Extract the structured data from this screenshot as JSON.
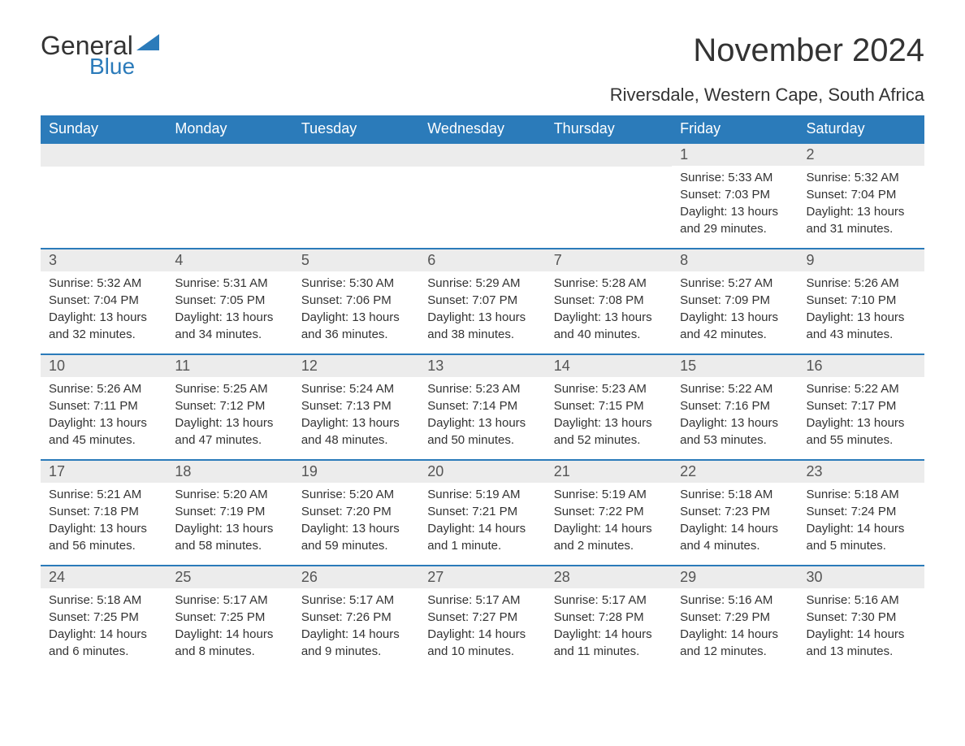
{
  "logo": {
    "text1": "General",
    "text2": "Blue"
  },
  "title": "November 2024",
  "subtitle": "Riversdale, Western Cape, South Africa",
  "colors": {
    "header_bg": "#2b7bba",
    "header_text": "#ffffff",
    "day_number_bg": "#ececec",
    "week_border": "#2b7bba",
    "body_text": "#333333",
    "logo_blue": "#2b7bba"
  },
  "day_headers": [
    "Sunday",
    "Monday",
    "Tuesday",
    "Wednesday",
    "Thursday",
    "Friday",
    "Saturday"
  ],
  "weeks": [
    [
      null,
      null,
      null,
      null,
      null,
      {
        "day": "1",
        "sunrise": "Sunrise: 5:33 AM",
        "sunset": "Sunset: 7:03 PM",
        "daylight": "Daylight: 13 hours and 29 minutes."
      },
      {
        "day": "2",
        "sunrise": "Sunrise: 5:32 AM",
        "sunset": "Sunset: 7:04 PM",
        "daylight": "Daylight: 13 hours and 31 minutes."
      }
    ],
    [
      {
        "day": "3",
        "sunrise": "Sunrise: 5:32 AM",
        "sunset": "Sunset: 7:04 PM",
        "daylight": "Daylight: 13 hours and 32 minutes."
      },
      {
        "day": "4",
        "sunrise": "Sunrise: 5:31 AM",
        "sunset": "Sunset: 7:05 PM",
        "daylight": "Daylight: 13 hours and 34 minutes."
      },
      {
        "day": "5",
        "sunrise": "Sunrise: 5:30 AM",
        "sunset": "Sunset: 7:06 PM",
        "daylight": "Daylight: 13 hours and 36 minutes."
      },
      {
        "day": "6",
        "sunrise": "Sunrise: 5:29 AM",
        "sunset": "Sunset: 7:07 PM",
        "daylight": "Daylight: 13 hours and 38 minutes."
      },
      {
        "day": "7",
        "sunrise": "Sunrise: 5:28 AM",
        "sunset": "Sunset: 7:08 PM",
        "daylight": "Daylight: 13 hours and 40 minutes."
      },
      {
        "day": "8",
        "sunrise": "Sunrise: 5:27 AM",
        "sunset": "Sunset: 7:09 PM",
        "daylight": "Daylight: 13 hours and 42 minutes."
      },
      {
        "day": "9",
        "sunrise": "Sunrise: 5:26 AM",
        "sunset": "Sunset: 7:10 PM",
        "daylight": "Daylight: 13 hours and 43 minutes."
      }
    ],
    [
      {
        "day": "10",
        "sunrise": "Sunrise: 5:26 AM",
        "sunset": "Sunset: 7:11 PM",
        "daylight": "Daylight: 13 hours and 45 minutes."
      },
      {
        "day": "11",
        "sunrise": "Sunrise: 5:25 AM",
        "sunset": "Sunset: 7:12 PM",
        "daylight": "Daylight: 13 hours and 47 minutes."
      },
      {
        "day": "12",
        "sunrise": "Sunrise: 5:24 AM",
        "sunset": "Sunset: 7:13 PM",
        "daylight": "Daylight: 13 hours and 48 minutes."
      },
      {
        "day": "13",
        "sunrise": "Sunrise: 5:23 AM",
        "sunset": "Sunset: 7:14 PM",
        "daylight": "Daylight: 13 hours and 50 minutes."
      },
      {
        "day": "14",
        "sunrise": "Sunrise: 5:23 AM",
        "sunset": "Sunset: 7:15 PM",
        "daylight": "Daylight: 13 hours and 52 minutes."
      },
      {
        "day": "15",
        "sunrise": "Sunrise: 5:22 AM",
        "sunset": "Sunset: 7:16 PM",
        "daylight": "Daylight: 13 hours and 53 minutes."
      },
      {
        "day": "16",
        "sunrise": "Sunrise: 5:22 AM",
        "sunset": "Sunset: 7:17 PM",
        "daylight": "Daylight: 13 hours and 55 minutes."
      }
    ],
    [
      {
        "day": "17",
        "sunrise": "Sunrise: 5:21 AM",
        "sunset": "Sunset: 7:18 PM",
        "daylight": "Daylight: 13 hours and 56 minutes."
      },
      {
        "day": "18",
        "sunrise": "Sunrise: 5:20 AM",
        "sunset": "Sunset: 7:19 PM",
        "daylight": "Daylight: 13 hours and 58 minutes."
      },
      {
        "day": "19",
        "sunrise": "Sunrise: 5:20 AM",
        "sunset": "Sunset: 7:20 PM",
        "daylight": "Daylight: 13 hours and 59 minutes."
      },
      {
        "day": "20",
        "sunrise": "Sunrise: 5:19 AM",
        "sunset": "Sunset: 7:21 PM",
        "daylight": "Daylight: 14 hours and 1 minute."
      },
      {
        "day": "21",
        "sunrise": "Sunrise: 5:19 AM",
        "sunset": "Sunset: 7:22 PM",
        "daylight": "Daylight: 14 hours and 2 minutes."
      },
      {
        "day": "22",
        "sunrise": "Sunrise: 5:18 AM",
        "sunset": "Sunset: 7:23 PM",
        "daylight": "Daylight: 14 hours and 4 minutes."
      },
      {
        "day": "23",
        "sunrise": "Sunrise: 5:18 AM",
        "sunset": "Sunset: 7:24 PM",
        "daylight": "Daylight: 14 hours and 5 minutes."
      }
    ],
    [
      {
        "day": "24",
        "sunrise": "Sunrise: 5:18 AM",
        "sunset": "Sunset: 7:25 PM",
        "daylight": "Daylight: 14 hours and 6 minutes."
      },
      {
        "day": "25",
        "sunrise": "Sunrise: 5:17 AM",
        "sunset": "Sunset: 7:25 PM",
        "daylight": "Daylight: 14 hours and 8 minutes."
      },
      {
        "day": "26",
        "sunrise": "Sunrise: 5:17 AM",
        "sunset": "Sunset: 7:26 PM",
        "daylight": "Daylight: 14 hours and 9 minutes."
      },
      {
        "day": "27",
        "sunrise": "Sunrise: 5:17 AM",
        "sunset": "Sunset: 7:27 PM",
        "daylight": "Daylight: 14 hours and 10 minutes."
      },
      {
        "day": "28",
        "sunrise": "Sunrise: 5:17 AM",
        "sunset": "Sunset: 7:28 PM",
        "daylight": "Daylight: 14 hours and 11 minutes."
      },
      {
        "day": "29",
        "sunrise": "Sunrise: 5:16 AM",
        "sunset": "Sunset: 7:29 PM",
        "daylight": "Daylight: 14 hours and 12 minutes."
      },
      {
        "day": "30",
        "sunrise": "Sunrise: 5:16 AM",
        "sunset": "Sunset: 7:30 PM",
        "daylight": "Daylight: 14 hours and 13 minutes."
      }
    ]
  ]
}
